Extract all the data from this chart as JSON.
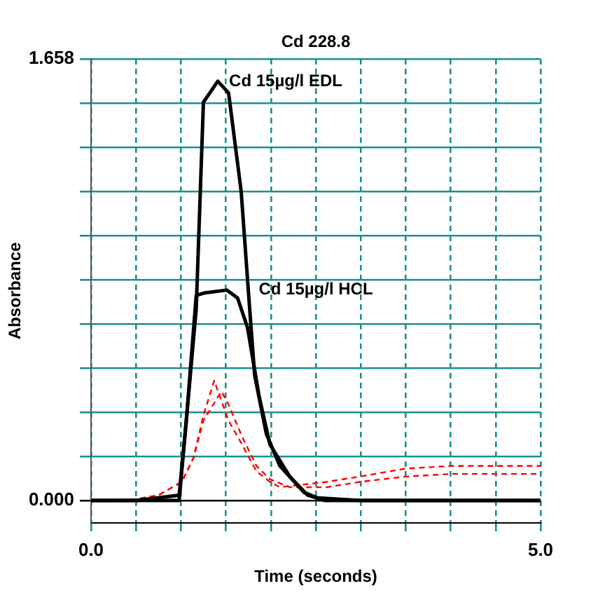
{
  "chart_data": {
    "type": "line",
    "title": "Cd 228.8",
    "xlabel": "Time (seconds)",
    "ylabel": "Absorbance",
    "xlim": [
      0,
      5
    ],
    "ylim": [
      -0.084,
      1.658
    ],
    "xticks": [
      {
        "value": 0,
        "label": "0.0"
      },
      {
        "value": 0.5,
        "label": null
      },
      {
        "value": 1,
        "label": null
      },
      {
        "value": 1.5,
        "label": null
      },
      {
        "value": 2,
        "label": null
      },
      {
        "value": 2.5,
        "label": null
      },
      {
        "value": 3,
        "label": null
      },
      {
        "value": 3.5,
        "label": null
      },
      {
        "value": 4,
        "label": null
      },
      {
        "value": 4.5,
        "label": null
      },
      {
        "value": 5,
        "label": "5.0"
      }
    ],
    "yticks": [
      {
        "value": 0,
        "label": "0.000"
      },
      {
        "value": 0.1658,
        "label": null
      },
      {
        "value": 0.3316,
        "label": null
      },
      {
        "value": 0.4974,
        "label": null
      },
      {
        "value": 0.6632,
        "label": null
      },
      {
        "value": 0.829,
        "label": null
      },
      {
        "value": 0.9948,
        "label": null
      },
      {
        "value": 1.1606,
        "label": null
      },
      {
        "value": 1.3264,
        "label": null
      },
      {
        "value": 1.4922,
        "label": null
      },
      {
        "value": 1.658,
        "label": "1.658"
      }
    ],
    "grid": true,
    "legend": false,
    "marker": "none",
    "series": [
      {
        "color": "#000000",
        "line_style": "solid",
        "x": [
          0,
          0.5,
          0.98,
          1.17,
          1.25,
          1.41,
          1.53,
          1.67,
          1.76,
          1.82,
          1.95,
          2.1,
          2.37,
          2.52,
          3,
          4,
          5
        ],
        "values": [
          0,
          0,
          0,
          0.72,
          1.495,
          1.574,
          1.53,
          1.16,
          0.74,
          0.47,
          0.25,
          0.13,
          0.03,
          0.01,
          0,
          0,
          0
        ]
      },
      {
        "color": "#000000",
        "line_style": "solid",
        "x": [
          0,
          0.5,
          0.98,
          1.06,
          1.17,
          1.27,
          1.51,
          1.63,
          1.74,
          1.87,
          1.99,
          2.21,
          2.41,
          2.6,
          3,
          4,
          5
        ],
        "values": [
          0,
          0,
          0.02,
          0.3,
          0.77,
          0.78,
          0.79,
          0.76,
          0.65,
          0.39,
          0.21,
          0.09,
          0.02,
          0,
          0,
          0,
          0
        ]
      },
      {
        "color": "#ff0000",
        "line_style": "dashed",
        "x": [
          0,
          0.5,
          0.75,
          1.01,
          1.14,
          1.25,
          1.37,
          1.53,
          1.68,
          1.84,
          1.99,
          2.1,
          2.62,
          2.99,
          3.5,
          4.02,
          5
        ],
        "values": [
          0,
          0.005,
          0.02,
          0.07,
          0.16,
          0.32,
          0.45,
          0.3,
          0.21,
          0.11,
          0.07,
          0.05,
          0.07,
          0.09,
          0.12,
          0.13,
          0.13
        ]
      },
      {
        "color": "#ff0000",
        "line_style": "dashed",
        "x": [
          0,
          0.5,
          0.75,
          1.01,
          1.14,
          1.25,
          1.45,
          1.53,
          1.68,
          1.84,
          1.99,
          2.21,
          2.62,
          2.99,
          3.5,
          4.02,
          5
        ],
        "values": [
          0,
          0.005,
          0.02,
          0.07,
          0.16,
          0.3,
          0.41,
          0.36,
          0.24,
          0.13,
          0.08,
          0.05,
          0.05,
          0.07,
          0.09,
          0.1,
          0.1
        ]
      }
    ],
    "annotations": [
      {
        "text": "Cd 15µg/l EDL",
        "x": 1.41,
        "y": 1.574
      },
      {
        "text": "Cd 15µg/l HCL",
        "x": 1.74,
        "y": 0.79
      }
    ]
  }
}
